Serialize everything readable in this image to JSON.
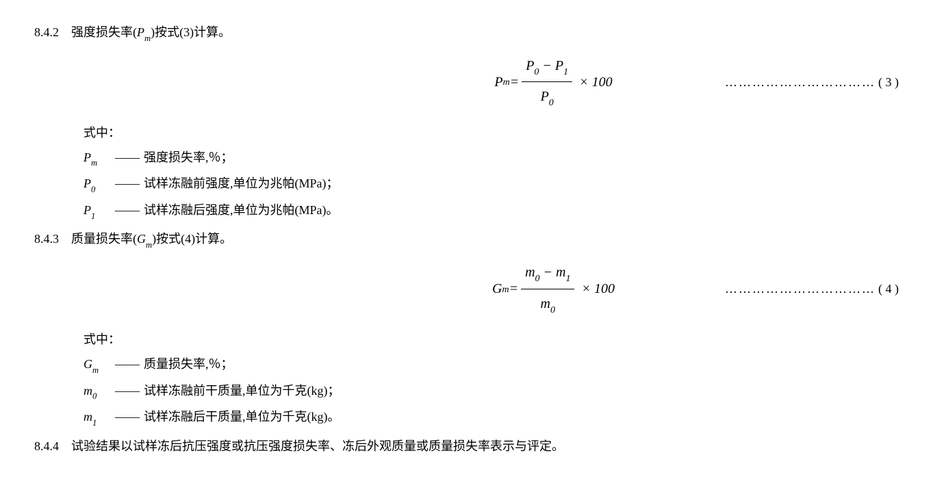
{
  "s842": {
    "number": "8.4.2",
    "text_prefix": "强度损失率(",
    "text_sym": "P",
    "text_sub": "m",
    "text_suffix": ")按式(3)计算。",
    "formula": {
      "lhs_sym": "P",
      "lhs_sub": "m",
      "eq": " = ",
      "num_a_sym": "P",
      "num_a_sub": "0",
      "num_minus": " − ",
      "num_b_sym": "P",
      "num_b_sub": "1",
      "den_sym": "P",
      "den_sub": "0",
      "tail": " × 100"
    },
    "dots": "……………………………",
    "eqnum": "( 3 )",
    "where_label": "式中：",
    "defs": [
      {
        "sym": "P",
        "sub": "m",
        "dash": "——",
        "text": "强度损失率,％；"
      },
      {
        "sym": "P",
        "sub": "0",
        "dash": "——",
        "text": "试样冻融前强度,单位为兆帕(MPa)；"
      },
      {
        "sym": "P",
        "sub": "1",
        "dash": "——",
        "text": "试样冻融后强度,单位为兆帕(MPa)。"
      }
    ]
  },
  "s843": {
    "number": "8.4.3",
    "text_prefix": "质量损失率(",
    "text_sym": "G",
    "text_sub": "m",
    "text_suffix": ")按式(4)计算。",
    "formula": {
      "lhs_sym": "G",
      "lhs_sub": "m",
      "eq": " = ",
      "num_a_sym": "m",
      "num_a_sub": "0",
      "num_minus": " − ",
      "num_b_sym": "m",
      "num_b_sub": "1",
      "den_sym": "m",
      "den_sub": "0",
      "tail": " × 100"
    },
    "dots": "……………………………",
    "eqnum": "( 4 )",
    "where_label": "式中：",
    "defs": [
      {
        "sym": "G",
        "sub": "m",
        "dash": "——",
        "text": "质量损失率,％；"
      },
      {
        "sym": "m",
        "sub": "0",
        "dash": "——",
        "text": "试样冻融前干质量,单位为千克(kg)；"
      },
      {
        "sym": "m",
        "sub": "1",
        "dash": "——",
        "text": "试样冻融后干质量,单位为千克(kg)。"
      }
    ]
  },
  "s844": {
    "number": "8.4.4",
    "text": "试验结果以试样冻后抗压强度或抗压强度损失率、冻后外观质量或质量损失率表示与评定。"
  }
}
